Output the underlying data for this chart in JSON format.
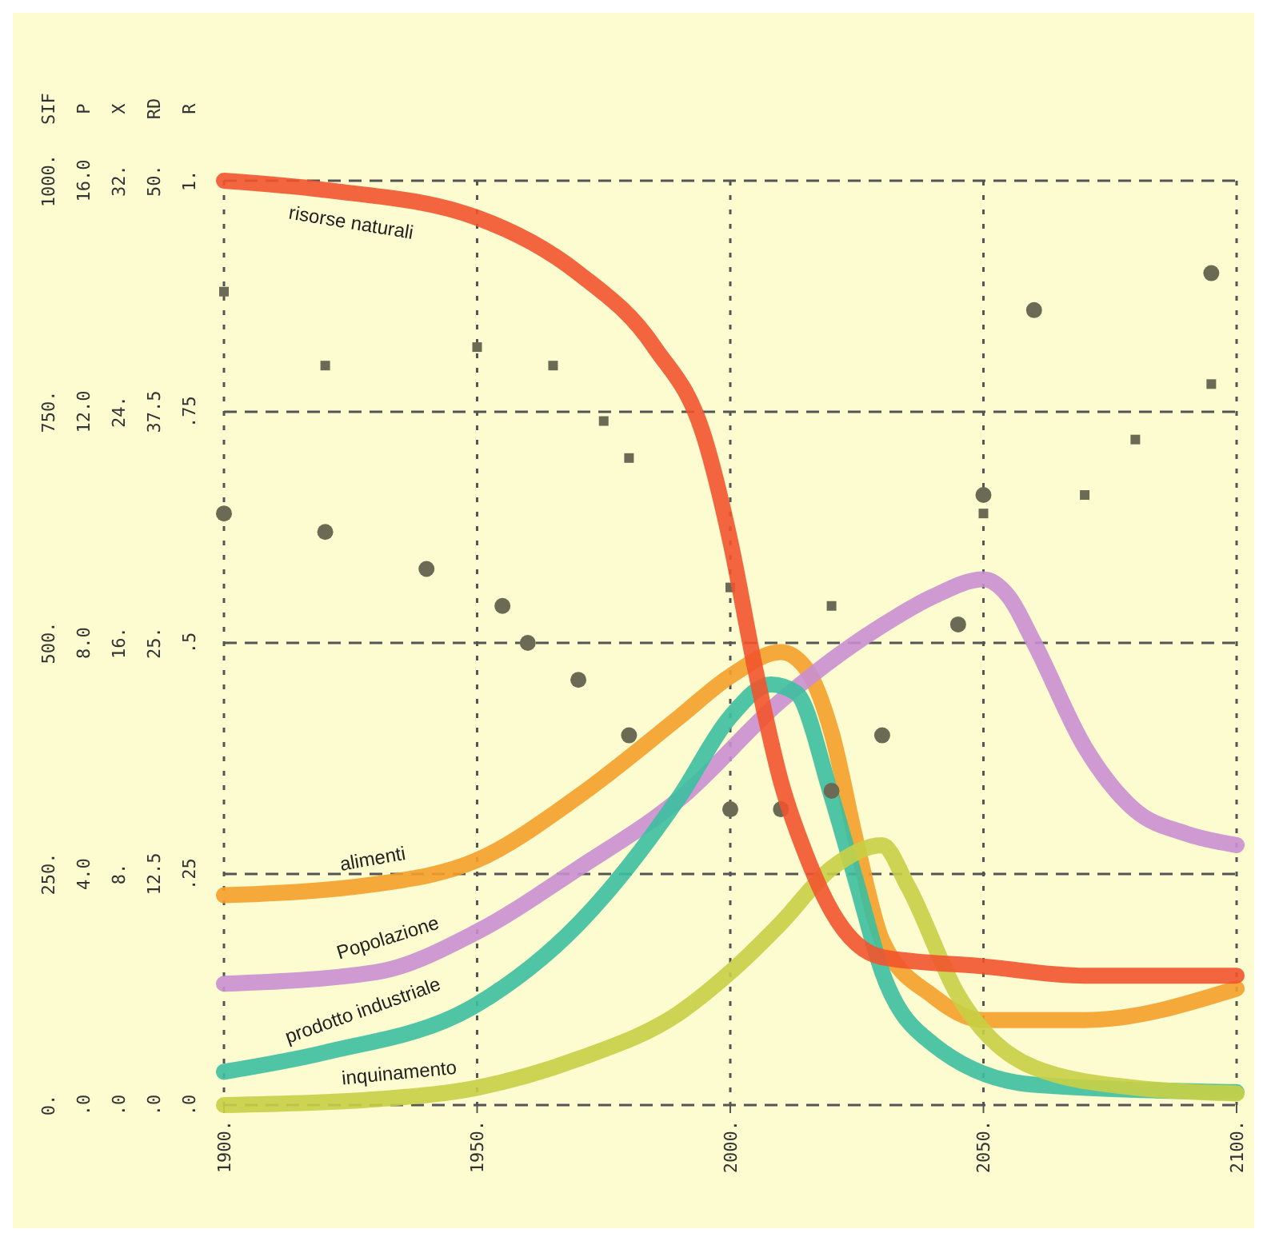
{
  "chart_data": [
    {
      "type": "line",
      "grid": true,
      "x": [
        1900,
        1930,
        1950,
        1970,
        1990,
        2000,
        2010,
        2015,
        2020,
        2025,
        2030,
        2040,
        2050,
        2070,
        2100
      ],
      "xlim": [
        1900,
        2100
      ],
      "xticks": [
        {
          "value": 1900,
          "label": "1900."
        },
        {
          "value": 1950,
          "label": "1950."
        },
        {
          "value": 2000,
          "label": "2000."
        },
        {
          "value": 2050,
          "label": "2050."
        },
        {
          "value": 2100,
          "label": "2100."
        }
      ],
      "ylabel": "SIF",
      "ylim": [
        0,
        1000
      ],
      "yticks": [
        {
          "value": 0,
          "label": "0."
        },
        {
          "value": 250,
          "label": "250."
        },
        {
          "value": 500,
          "label": "500."
        },
        {
          "value": 750,
          "label": "750."
        },
        {
          "value": 1000,
          "label": "1000."
        }
      ],
      "y2label": "P",
      "y2lim": [
        0,
        16
      ],
      "y2ticks": [
        {
          "value": 0,
          "label": ".0"
        },
        {
          "value": 4,
          "label": "4.0"
        },
        {
          "value": 8,
          "label": "8.0"
        },
        {
          "value": 12,
          "label": "12.0"
        },
        {
          "value": 16,
          "label": "16.0"
        }
      ],
      "y3label": "X",
      "y3lim": [
        0,
        32
      ],
      "y3ticks": [
        {
          "value": 0,
          "label": ".0"
        },
        {
          "value": 8,
          "label": "8."
        },
        {
          "value": 16,
          "label": "16."
        },
        {
          "value": 24,
          "label": "24."
        },
        {
          "value": 32,
          "label": "32."
        }
      ],
      "series": [
        {
          "name": "alimenti",
          "color": "#f5a02a",
          "values": [
            227,
            239,
            265,
            334,
            420,
            464,
            490,
            472,
            403,
            282,
            178,
            118,
            92,
            92,
            126
          ]
        },
        {
          "name": "Popolazione",
          "color": "#c98fd0",
          "axis": "y2",
          "x": [
            1900,
            1930,
            1950,
            1970,
            1990,
            2010,
            2030,
            2040,
            2050,
            2055,
            2060,
            2070,
            2080,
            2090,
            2100
          ],
          "values": [
            2.1,
            2.3,
            3.0,
            4.1,
            5.3,
            7.0,
            8.3,
            8.8,
            9.1,
            8.8,
            8.0,
            6.2,
            5.1,
            4.7,
            4.5
          ]
        },
        {
          "name": "prodotto industriale",
          "color": "#3cbfa0",
          "x": [
            1900,
            1920,
            1950,
            1970,
            1990,
            2000,
            2008,
            2013,
            2020,
            2025,
            2030,
            2040,
            2060,
            2100
          ],
          "values": [
            36,
            57,
            109,
            196,
            334,
            420,
            455,
            446,
            334,
            239,
            144,
            66,
            22,
            14
          ]
        },
        {
          "name": "inquinamento",
          "color": "#c8cf45",
          "axis": "y3",
          "x": [
            1900,
            1930,
            1950,
            1970,
            1990,
            2000,
            2010,
            2020,
            2030,
            2035,
            2045,
            2060,
            2080,
            2100
          ],
          "values": [
            0,
            0.2,
            0.6,
            1.6,
            3.2,
            4.6,
            6.3,
            8.2,
            9.0,
            7.6,
            3.8,
            1.3,
            0.6,
            0.4
          ]
        }
      ]
    },
    {
      "type": "line",
      "grid": false,
      "tick_labels": "y",
      "x": [
        1900,
        1920,
        1950,
        1970,
        1985,
        1995,
        2000,
        2005,
        2010,
        2015,
        2020,
        2030,
        2050,
        2070,
        2100
      ],
      "xlim": [
        1900,
        2100
      ],
      "ylabel": "RD",
      "ylim": [
        0,
        50
      ],
      "yticks": [
        {
          "value": 0,
          "label": ".0"
        },
        {
          "value": 12.5,
          "label": "12.5"
        },
        {
          "value": 25,
          "label": "25."
        },
        {
          "value": 37.5,
          "label": "37.5"
        },
        {
          "value": 50,
          "label": "50."
        }
      ],
      "y2label": "R",
      "y2lim": [
        0,
        1
      ],
      "y2ticks": [
        {
          "value": 0,
          "label": ".0"
        },
        {
          "value": 0.25,
          "label": ".25"
        },
        {
          "value": 0.5,
          "label": ".5"
        },
        {
          "value": 0.75,
          "label": ".75"
        },
        {
          "value": 1,
          "label": "1."
        }
      ],
      "series": [
        {
          "name": "risorse naturali",
          "color": "#f2542d",
          "axis": "y2",
          "values": [
            1.0,
            0.99,
            0.96,
            0.9,
            0.82,
            0.72,
            0.61,
            0.47,
            0.35,
            0.27,
            0.21,
            0.16,
            0.15,
            0.14,
            0.14
          ]
        },
        {
          "type": "scatter",
          "marker": "square",
          "color": "#6b6b55",
          "x": [
            1900,
            1920,
            1950,
            1965,
            1975,
            1980,
            2000,
            2020,
            2050,
            2070,
            2080,
            2095
          ],
          "values": [
            44,
            40,
            41,
            40,
            37,
            35,
            28,
            27,
            32,
            33,
            36,
            39
          ]
        },
        {
          "type": "scatter",
          "marker": "circle",
          "color": "#6b6b55",
          "x": [
            1900,
            1920,
            1940,
            1955,
            1960,
            1970,
            1980,
            2000,
            2010,
            2020,
            2030,
            2045,
            2050,
            2060,
            2095
          ],
          "values": [
            32,
            31,
            29,
            27,
            25,
            23,
            20,
            16,
            16,
            17,
            20,
            26,
            33,
            43,
            45
          ]
        }
      ]
    }
  ]
}
